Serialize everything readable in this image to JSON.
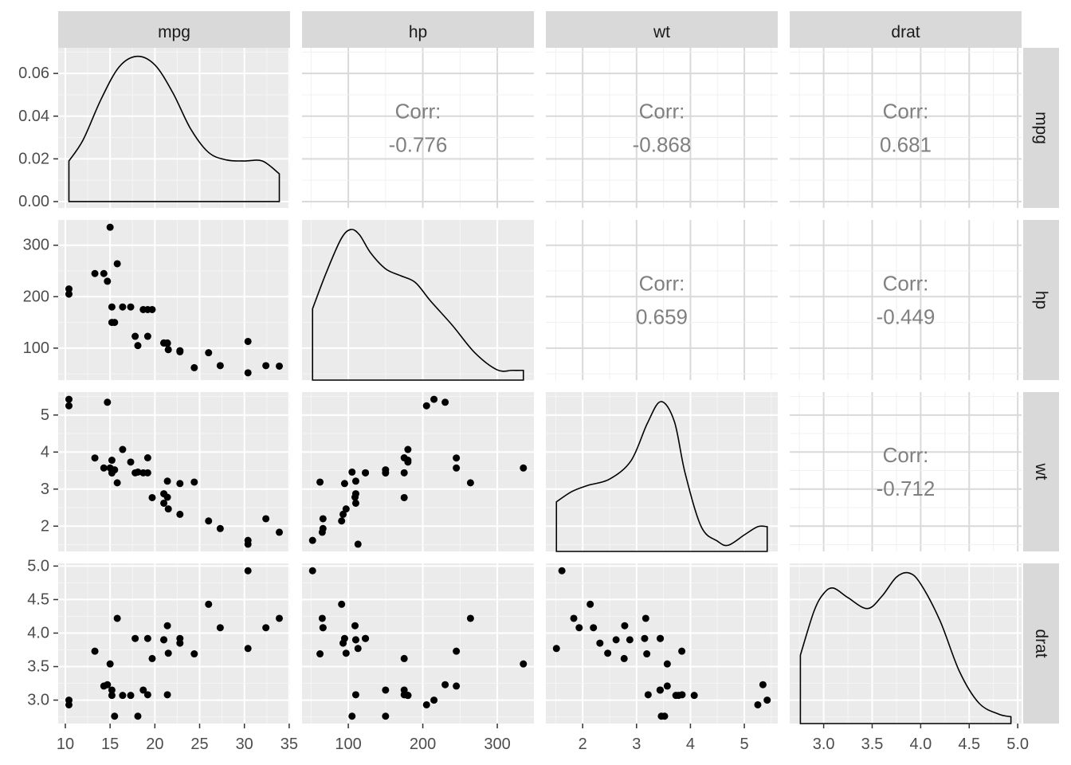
{
  "chart_data": {
    "type": "scatter-matrix",
    "variables": [
      "mpg",
      "hp",
      "wt",
      "drat"
    ],
    "observations": {
      "mpg": [
        21.0,
        21.0,
        22.8,
        21.4,
        18.7,
        18.1,
        14.3,
        24.4,
        22.8,
        19.2,
        17.8,
        16.4,
        17.3,
        15.2,
        10.4,
        10.4,
        14.7,
        32.4,
        30.4,
        33.9,
        21.5,
        15.5,
        15.2,
        13.3,
        19.2,
        27.3,
        26.0,
        30.4,
        15.8,
        19.7,
        15.0,
        21.4
      ],
      "hp": [
        110,
        110,
        93,
        110,
        175,
        105,
        245,
        62,
        95,
        123,
        123,
        180,
        180,
        180,
        205,
        215,
        230,
        66,
        52,
        65,
        97,
        150,
        150,
        245,
        175,
        66,
        91,
        113,
        264,
        175,
        335,
        109
      ],
      "wt": [
        2.62,
        2.875,
        2.32,
        3.215,
        3.44,
        3.46,
        3.57,
        3.19,
        3.15,
        3.44,
        3.44,
        4.07,
        3.73,
        3.78,
        5.25,
        5.424,
        5.345,
        2.2,
        1.615,
        1.835,
        2.465,
        3.52,
        3.435,
        3.84,
        3.845,
        1.935,
        2.14,
        1.513,
        3.17,
        2.77,
        3.57,
        2.78
      ],
      "drat": [
        3.9,
        3.9,
        3.85,
        3.08,
        3.15,
        2.76,
        3.21,
        3.69,
        3.92,
        3.92,
        3.92,
        3.07,
        3.07,
        3.07,
        2.93,
        3.0,
        3.23,
        4.08,
        4.93,
        4.22,
        3.7,
        2.76,
        3.15,
        3.73,
        3.08,
        4.08,
        4.43,
        3.77,
        4.22,
        3.62,
        3.54,
        4.11
      ]
    },
    "correlations": [
      {
        "row": "mpg",
        "col": "hp",
        "label": "Corr:",
        "value": "-0.776"
      },
      {
        "row": "mpg",
        "col": "wt",
        "label": "Corr:",
        "value": "-0.868"
      },
      {
        "row": "mpg",
        "col": "drat",
        "label": "Corr:",
        "value": "0.681"
      },
      {
        "row": "hp",
        "col": "wt",
        "label": "Corr:",
        "value": "0.659"
      },
      {
        "row": "hp",
        "col": "drat",
        "label": "Corr:",
        "value": "-0.449"
      },
      {
        "row": "wt",
        "col": "drat",
        "label": "Corr:",
        "value": "-0.712"
      }
    ],
    "x_axes": {
      "mpg": {
        "range": [
          9.2,
          35.1
        ],
        "ticks": [
          "10",
          "15",
          "20",
          "25",
          "30",
          "35"
        ]
      },
      "hp": {
        "range": [
          37.85,
          349.15
        ],
        "ticks": [
          "100",
          "200",
          "300"
        ]
      },
      "wt": {
        "range": [
          1.317,
          5.62
        ],
        "ticks": [
          "2",
          "3",
          "4",
          "5"
        ]
      },
      "drat": {
        "range": [
          2.65,
          5.04
        ],
        "ticks": [
          "3.0",
          "3.5",
          "4.0",
          "4.5",
          "5.0"
        ]
      }
    },
    "y_axes": {
      "mpg": {
        "range": [
          -0.003,
          0.072
        ],
        "ticks": [
          "0.00",
          "0.02",
          "0.04",
          "0.06"
        ]
      },
      "hp": {
        "range": [
          37.85,
          349.15
        ],
        "ticks": [
          "100",
          "200",
          "300"
        ]
      },
      "wt": {
        "range": [
          1.317,
          5.62
        ],
        "ticks": [
          "2",
          "3",
          "4",
          "5"
        ]
      },
      "drat": {
        "range": [
          2.65,
          5.04
        ],
        "ticks": [
          "3.0",
          "3.5",
          "4.0",
          "4.5",
          "5.0"
        ]
      }
    },
    "density_curves": {
      "mpg": {
        "x": [
          10.4,
          12,
          14,
          16,
          18,
          20,
          22,
          24,
          26,
          28,
          30,
          32,
          33.9
        ],
        "y": [
          0.019,
          0.029,
          0.048,
          0.063,
          0.068,
          0.064,
          0.051,
          0.034,
          0.023,
          0.0195,
          0.019,
          0.019,
          0.013
        ]
      },
      "hp": {
        "x": [
          52,
          70,
          90,
          103,
          115,
          130,
          150,
          170,
          190,
          210,
          240,
          270,
          300,
          320,
          335
        ],
        "y": [
          0.00314,
          0.0047,
          0.0062,
          0.00663,
          0.0064,
          0.0056,
          0.0049,
          0.0046,
          0.0043,
          0.0035,
          0.0024,
          0.0012,
          0.00045,
          0.00043,
          0.00043
        ]
      },
      "wt": {
        "x": [
          1.513,
          1.8,
          2.1,
          2.5,
          2.9,
          3.2,
          3.45,
          3.7,
          3.9,
          4.2,
          4.5,
          4.7,
          5.0,
          5.25,
          5.424
        ],
        "y": [
          0.24,
          0.29,
          0.32,
          0.35,
          0.44,
          0.62,
          0.725,
          0.63,
          0.38,
          0.12,
          0.05,
          0.03,
          0.08,
          0.12,
          0.12
        ]
      },
      "drat": {
        "x": [
          2.76,
          2.9,
          3.0,
          3.1,
          3.25,
          3.45,
          3.6,
          3.75,
          3.88,
          4.0,
          4.2,
          4.4,
          4.6,
          4.8,
          4.93
        ],
        "y": [
          0.5,
          0.82,
          0.95,
          0.99,
          0.92,
          0.84,
          0.93,
          1.07,
          1.1,
          1.02,
          0.75,
          0.38,
          0.15,
          0.07,
          0.05
        ]
      }
    },
    "grid": true
  }
}
